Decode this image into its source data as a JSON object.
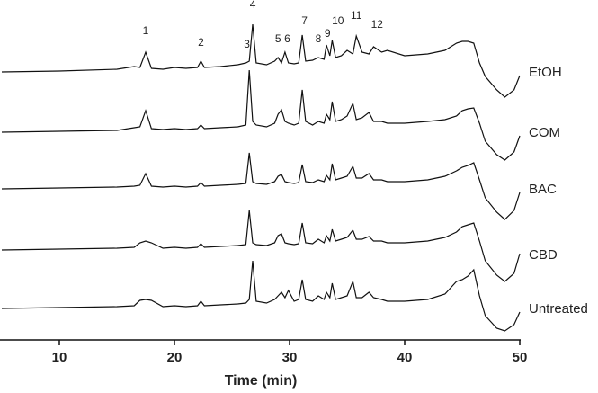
{
  "chart_data": {
    "type": "line",
    "x_label": "Time (min)",
    "xlim": [
      5,
      50
    ],
    "xticks": [
      10,
      20,
      30,
      40,
      50
    ],
    "x": [
      5,
      10,
      15,
      16.5,
      17,
      17.5,
      18,
      19,
      20,
      21,
      22,
      22.3,
      22.6,
      24,
      25.5,
      26.2,
      26.5,
      26.8,
      27.1,
      28,
      28.7,
      29,
      29.3,
      29.6,
      29.9,
      30.4,
      30.8,
      31.1,
      31.4,
      32,
      32.5,
      33,
      33.2,
      33.5,
      33.7,
      34,
      34.5,
      35,
      35.5,
      35.8,
      36.3,
      36.9,
      37.3,
      38,
      38.5,
      40,
      42,
      43.5,
      44.5,
      45,
      45.5,
      46,
      46.5,
      47,
      48,
      48.7,
      49.5,
      50
    ],
    "series": [
      {
        "name": "EtOH",
        "color": "#111111",
        "values": [
          0,
          1,
          3,
          6,
          5,
          22,
          4,
          3,
          5,
          4,
          5,
          12,
          5,
          6,
          8,
          10,
          12,
          53,
          10,
          8,
          12,
          16,
          10,
          22,
          10,
          9,
          10,
          41,
          12,
          13,
          16,
          14,
          30,
          18,
          35,
          16,
          18,
          24,
          20,
          40,
          22,
          20,
          28,
          22,
          24,
          18,
          20,
          24,
          32,
          34,
          34,
          32,
          10,
          -5,
          -20,
          -28,
          -20,
          -4
        ]
      },
      {
        "name": "COM",
        "color": "#111111",
        "values": [
          0,
          1,
          2,
          5,
          6,
          24,
          4,
          3,
          4,
          3,
          4,
          8,
          4,
          5,
          6,
          8,
          69,
          12,
          8,
          6,
          10,
          20,
          25,
          12,
          10,
          8,
          10,
          47,
          12,
          8,
          12,
          10,
          20,
          14,
          34,
          12,
          14,
          18,
          32,
          14,
          16,
          22,
          12,
          12,
          10,
          10,
          12,
          14,
          18,
          24,
          26,
          27,
          10,
          -10,
          -25,
          -31,
          -22,
          -4
        ]
      },
      {
        "name": "BAC",
        "color": "#111111",
        "values": [
          0,
          1,
          2,
          3,
          4,
          17,
          3,
          2,
          3,
          2,
          3,
          7,
          3,
          4,
          5,
          6,
          40,
          8,
          6,
          5,
          8,
          14,
          16,
          8,
          7,
          6,
          7,
          27,
          8,
          7,
          10,
          8,
          15,
          10,
          28,
          10,
          12,
          14,
          25,
          12,
          12,
          17,
          10,
          10,
          8,
          8,
          10,
          14,
          20,
          24,
          26,
          29,
          10,
          -10,
          -26,
          -34,
          -24,
          -4
        ]
      },
      {
        "name": "CBD",
        "color": "#111111",
        "values": [
          0,
          1,
          2,
          3,
          8,
          10,
          8,
          2,
          3,
          2,
          3,
          7,
          3,
          4,
          5,
          6,
          44,
          8,
          6,
          5,
          8,
          16,
          18,
          8,
          7,
          6,
          7,
          30,
          8,
          7,
          12,
          8,
          16,
          10,
          23,
          10,
          12,
          14,
          22,
          12,
          12,
          15,
          10,
          10,
          8,
          8,
          10,
          14,
          20,
          26,
          28,
          30,
          10,
          -12,
          -28,
          -35,
          -26,
          -4
        ]
      },
      {
        "name": "Untreated",
        "color": "#111111",
        "values": [
          0,
          1,
          2,
          3,
          9,
          10,
          9,
          2,
          3,
          2,
          3,
          8,
          3,
          4,
          5,
          6,
          10,
          53,
          8,
          6,
          10,
          14,
          18,
          12,
          20,
          8,
          10,
          32,
          10,
          8,
          14,
          10,
          18,
          12,
          28,
          10,
          12,
          14,
          30,
          12,
          12,
          18,
          12,
          10,
          8,
          8,
          10,
          16,
          30,
          32,
          36,
          43,
          14,
          -8,
          -22,
          -25,
          -18,
          -4
        ]
      }
    ],
    "annotations": [
      {
        "text": "1",
        "x": 17.5
      },
      {
        "text": "2",
        "x": 22.3
      },
      {
        "text": "3",
        "x": 26.3
      },
      {
        "text": "4",
        "x": 26.8
      },
      {
        "text": "5",
        "x": 29
      },
      {
        "text": "6",
        "x": 29.8
      },
      {
        "text": "7",
        "x": 31.3
      },
      {
        "text": "8",
        "x": 32.5
      },
      {
        "text": "9",
        "x": 33.3
      },
      {
        "text": "10",
        "x": 34.2
      },
      {
        "text": "11",
        "x": 35.8
      },
      {
        "text": "12",
        "x": 37.6
      }
    ]
  }
}
